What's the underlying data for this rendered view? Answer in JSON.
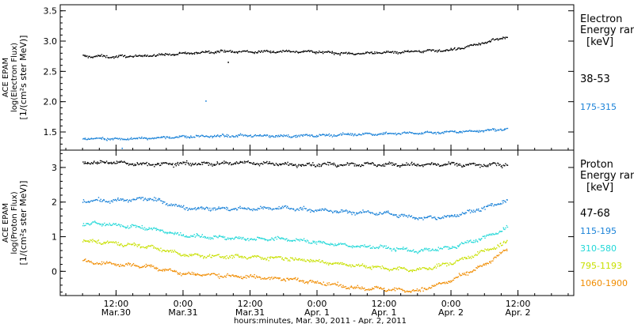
{
  "chart_data": [
    {
      "type": "scatter",
      "panel": "electron",
      "ylabel_lines": [
        "ACE EPAM",
        "log(Electron Flux)",
        "[1/(cm²s ster MeV)]"
      ],
      "ylim": [
        1.2,
        3.6
      ],
      "yticks": [
        1.5,
        2.0,
        2.5,
        3.0,
        3.5
      ],
      "ytick_labels": [
        "1.5",
        "2.0",
        "2.5",
        "3.0",
        "3.5"
      ],
      "legend_title": [
        "Electron",
        "Energy ran",
        "[keV]"
      ],
      "legend_placement": "right",
      "series": [
        {
          "name": "38-53",
          "color": "#000000",
          "x": [
            -6,
            0,
            6,
            12,
            18,
            24,
            30,
            36,
            42,
            48,
            54,
            60,
            66,
            70
          ],
          "y": [
            2.76,
            2.75,
            2.77,
            2.8,
            2.84,
            2.83,
            2.84,
            2.83,
            2.8,
            2.82,
            2.84,
            2.86,
            2.98,
            3.08
          ],
          "extra_x": [
            20
          ],
          "extra_y": [
            2.66
          ]
        },
        {
          "name": "175-315",
          "color": "#1a82d8",
          "x": [
            -6,
            0,
            6,
            12,
            18,
            24,
            30,
            36,
            42,
            48,
            54,
            60,
            66,
            70
          ],
          "y": [
            1.4,
            1.39,
            1.41,
            1.43,
            1.44,
            1.45,
            1.44,
            1.45,
            1.47,
            1.48,
            1.49,
            1.51,
            1.53,
            1.56
          ],
          "extra_x": [
            16,
            1
          ],
          "extra_y": [
            2.02,
            1.24
          ]
        }
      ]
    },
    {
      "type": "scatter",
      "panel": "proton",
      "ylabel_lines": [
        "ACE EPAM",
        "log(Proton Flux)",
        "[1/(cm²s ster MeV)]"
      ],
      "ylim": [
        -0.7,
        3.5
      ],
      "yticks": [
        0,
        1,
        2,
        3
      ],
      "ytick_labels": [
        "0",
        "1",
        "2",
        "3"
      ],
      "legend_title": [
        "Proton",
        "Energy ran",
        "[keV]"
      ],
      "legend_placement": "right",
      "series": [
        {
          "name": "47-68",
          "color": "#000000",
          "x": [
            -6,
            0,
            6,
            12,
            18,
            24,
            30,
            36,
            42,
            48,
            54,
            60,
            66,
            70
          ],
          "y": [
            3.15,
            3.16,
            3.1,
            3.12,
            3.13,
            3.15,
            3.1,
            3.1,
            3.11,
            3.1,
            3.09,
            3.1,
            3.08,
            3.1
          ]
        },
        {
          "name": "115-195",
          "color": "#1a82d8",
          "x": [
            -6,
            0,
            6,
            12,
            18,
            24,
            30,
            36,
            42,
            48,
            54,
            60,
            66,
            70
          ],
          "y": [
            2.06,
            2.05,
            2.12,
            1.85,
            1.82,
            1.82,
            1.85,
            1.78,
            1.72,
            1.7,
            1.55,
            1.6,
            1.85,
            2.05
          ]
        },
        {
          "name": "310-580",
          "color": "#22d8d8",
          "x": [
            -6,
            0,
            6,
            12,
            18,
            24,
            30,
            36,
            42,
            48,
            54,
            60,
            66,
            70
          ],
          "y": [
            1.4,
            1.36,
            1.25,
            1.05,
            1.0,
            0.95,
            0.95,
            0.85,
            0.75,
            0.7,
            0.6,
            0.7,
            1.0,
            1.25
          ]
        },
        {
          "name": "795-1193",
          "color": "#c8e000",
          "x": [
            -6,
            0,
            6,
            12,
            18,
            24,
            30,
            36,
            42,
            48,
            54,
            60,
            66,
            70
          ],
          "y": [
            0.9,
            0.82,
            0.72,
            0.5,
            0.45,
            0.42,
            0.4,
            0.3,
            0.2,
            0.1,
            0.05,
            0.25,
            0.6,
            0.85
          ]
        },
        {
          "name": "1060-1900",
          "color": "#f08c00",
          "x": [
            -6,
            0,
            6,
            12,
            18,
            24,
            30,
            36,
            42,
            48,
            54,
            60,
            66,
            70
          ],
          "y": [
            0.3,
            0.22,
            0.15,
            -0.05,
            -0.1,
            -0.15,
            -0.2,
            -0.3,
            -0.45,
            -0.5,
            -0.55,
            -0.25,
            0.2,
            0.65
          ]
        }
      ]
    }
  ],
  "x_axis": {
    "xlim": [
      -10,
      82
    ],
    "ticks": [
      0,
      12,
      24,
      36,
      48,
      60,
      72
    ],
    "tick_time_labels": [
      "12:00",
      "0:00",
      "12:00",
      "0:00",
      "12:00",
      "0:00",
      "12:00"
    ],
    "tick_date_labels": [
      "Mar.30",
      "Mar.31",
      "Mar.31",
      "Apr. 1",
      "Apr. 1",
      "Apr. 2",
      "Apr. 2"
    ],
    "xlabel": "hours:minutes, Mar. 30, 2011 - Apr.  2, 2011"
  }
}
